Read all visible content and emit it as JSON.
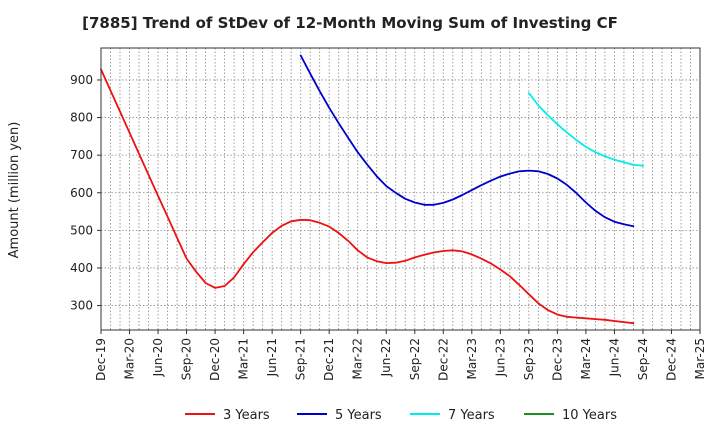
{
  "chart_data": {
    "type": "line",
    "title": "[7885]  Trend of StDev of 12-Month Moving Sum of Investing CF",
    "ylabel": "Amount (million yen)",
    "xlabel": "",
    "ylim": [
      235,
      985
    ],
    "yticks": [
      300,
      400,
      500,
      600,
      700,
      800,
      900
    ],
    "grid": true,
    "legend_position": "bottom",
    "categories": [
      "Dec-19",
      "Mar-20",
      "Jun-20",
      "Sep-20",
      "Dec-20",
      "Mar-21",
      "Jun-21",
      "Sep-21",
      "Dec-21",
      "Mar-22",
      "Jun-22",
      "Sep-22",
      "Dec-22",
      "Mar-23",
      "Jun-23",
      "Sep-23",
      "Dec-23",
      "Mar-24",
      "Jun-24",
      "Sep-24",
      "Dec-24",
      "Mar-25"
    ],
    "x_unit": "month",
    "series": [
      {
        "name": "3 Years",
        "color": "#ee1111",
        "points": [
          [
            0,
            928
          ],
          [
            1,
            872
          ],
          [
            2,
            816
          ],
          [
            3,
            760
          ],
          [
            4,
            704
          ],
          [
            5,
            648
          ],
          [
            6,
            592
          ],
          [
            7,
            536
          ],
          [
            8,
            480
          ],
          [
            9,
            425
          ],
          [
            10,
            390
          ],
          [
            11,
            360
          ],
          [
            12,
            347
          ],
          [
            13,
            352
          ],
          [
            14,
            375
          ],
          [
            15,
            410
          ],
          [
            16,
            442
          ],
          [
            17,
            468
          ],
          [
            18,
            493
          ],
          [
            19,
            512
          ],
          [
            20,
            524
          ],
          [
            21,
            528
          ],
          [
            22,
            527
          ],
          [
            23,
            520
          ],
          [
            24,
            510
          ],
          [
            25,
            493
          ],
          [
            26,
            472
          ],
          [
            27,
            447
          ],
          [
            28,
            428
          ],
          [
            29,
            418
          ],
          [
            30,
            413
          ],
          [
            31,
            414
          ],
          [
            32,
            419
          ],
          [
            33,
            428
          ],
          [
            34,
            435
          ],
          [
            35,
            441
          ],
          [
            36,
            445
          ],
          [
            37,
            447
          ],
          [
            38,
            444
          ],
          [
            39,
            436
          ],
          [
            40,
            425
          ],
          [
            41,
            412
          ],
          [
            42,
            396
          ],
          [
            43,
            378
          ],
          [
            44,
            355
          ],
          [
            45,
            330
          ],
          [
            46,
            306
          ],
          [
            47,
            288
          ],
          [
            48,
            276
          ],
          [
            49,
            270
          ],
          [
            50,
            268
          ],
          [
            51,
            266
          ],
          [
            52,
            264
          ],
          [
            53,
            262
          ],
          [
            54,
            259
          ],
          [
            55,
            256
          ],
          [
            56,
            253
          ]
        ]
      },
      {
        "name": "5 Years",
        "color": "#0000cc",
        "points": [
          [
            21,
            965
          ],
          [
            22,
            917
          ],
          [
            23,
            870
          ],
          [
            24,
            826
          ],
          [
            25,
            785
          ],
          [
            26,
            746
          ],
          [
            27,
            708
          ],
          [
            28,
            675
          ],
          [
            29,
            644
          ],
          [
            30,
            618
          ],
          [
            31,
            600
          ],
          [
            32,
            584
          ],
          [
            33,
            574
          ],
          [
            34,
            568
          ],
          [
            35,
            568
          ],
          [
            36,
            573
          ],
          [
            37,
            582
          ],
          [
            38,
            594
          ],
          [
            39,
            607
          ],
          [
            40,
            620
          ],
          [
            41,
            632
          ],
          [
            42,
            643
          ],
          [
            43,
            651
          ],
          [
            44,
            657
          ],
          [
            45,
            659
          ],
          [
            46,
            657
          ],
          [
            47,
            650
          ],
          [
            48,
            638
          ],
          [
            49,
            621
          ],
          [
            50,
            599
          ],
          [
            51,
            574
          ],
          [
            52,
            552
          ],
          [
            53,
            535
          ],
          [
            54,
            523
          ],
          [
            55,
            516
          ],
          [
            56,
            511
          ]
        ]
      },
      {
        "name": "7 Years",
        "color": "#00eeee",
        "points": [
          [
            45,
            865
          ],
          [
            46,
            832
          ],
          [
            47,
            806
          ],
          [
            48,
            782
          ],
          [
            49,
            760
          ],
          [
            50,
            740
          ],
          [
            51,
            722
          ],
          [
            52,
            708
          ],
          [
            53,
            697
          ],
          [
            54,
            688
          ],
          [
            55,
            681
          ],
          [
            56,
            674
          ],
          [
            57,
            672
          ]
        ]
      },
      {
        "name": "10 Years",
        "color": "#228b22",
        "points": []
      }
    ]
  }
}
